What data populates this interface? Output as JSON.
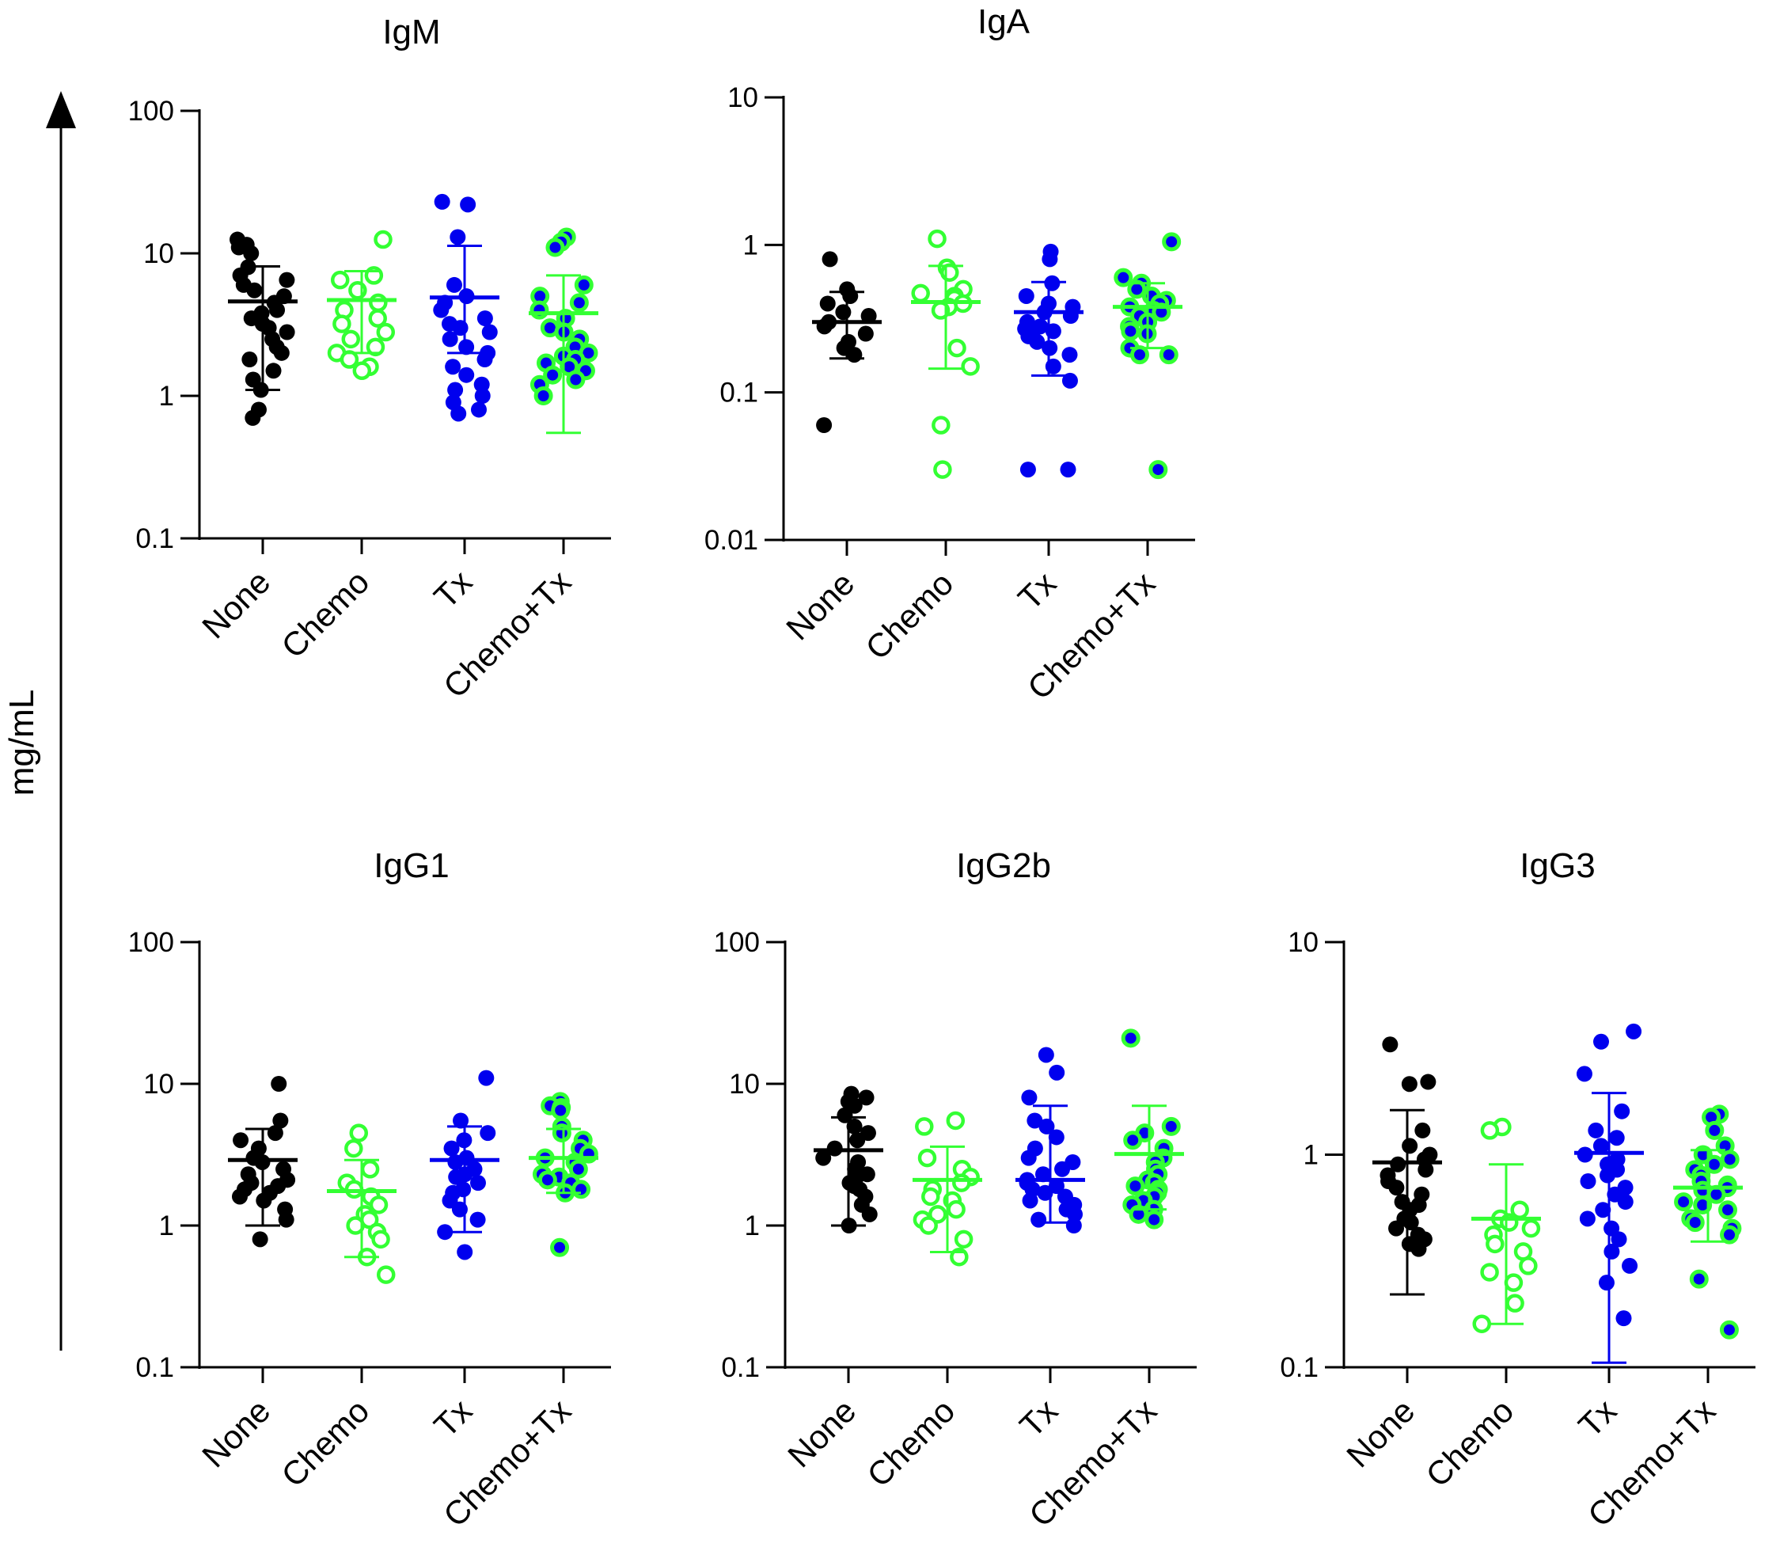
{
  "figure": {
    "ylabel": "mg/mL",
    "colors": {
      "none": "#000000",
      "chemo": "#33ff33",
      "tx": "#0000ee",
      "chemo_tx_fill": "#0000ee",
      "chemo_tx_ring": "#33ff33"
    }
  },
  "chart_data": [
    {
      "type": "scatter",
      "title": "IgM",
      "scale": "log10",
      "ylim": [
        0.1,
        100
      ],
      "yticks": [
        "0.1",
        "1",
        "10",
        "100"
      ],
      "categories": [
        "None",
        "Chemo",
        "Tx",
        "Chemo+Tx"
      ],
      "groups": [
        {
          "name": "None",
          "mean": 4.6,
          "err_low": 1.1,
          "err_high": 8.1,
          "values": [
            12.5,
            11.5,
            11,
            10,
            8,
            7,
            6.5,
            6,
            5.5,
            5,
            4.5,
            4,
            3.8,
            3.5,
            3.2,
            3,
            2.8,
            2.5,
            2.2,
            2,
            1.8,
            1.5,
            1.3,
            1.1,
            0.8,
            0.7
          ]
        },
        {
          "name": "Chemo",
          "mean": 4.7,
          "err_low": 2.0,
          "err_high": 7.5,
          "values": [
            12.5,
            7,
            6.5,
            5.5,
            4.5,
            4,
            3.5,
            3.2,
            2.8,
            2.5,
            2.2,
            2,
            1.8,
            1.6,
            1.5
          ]
        },
        {
          "name": "Tx",
          "mean": 4.9,
          "err_low": 2.0,
          "err_high": 11.3,
          "values": [
            23,
            22,
            13,
            6,
            5,
            4.5,
            4,
            3.5,
            3.2,
            3,
            2.8,
            2.5,
            2.2,
            2,
            1.8,
            1.6,
            1.4,
            1.2,
            1.1,
            1,
            0.9,
            0.8,
            0.75
          ]
        },
        {
          "name": "Chemo+Tx",
          "mean": 3.8,
          "err_low": 0.55,
          "err_high": 7.0,
          "values": [
            13,
            12,
            11,
            6,
            5,
            4.5,
            4,
            3.5,
            3,
            2.8,
            2.5,
            2.2,
            2,
            1.9,
            1.8,
            1.7,
            1.6,
            1.5,
            1.4,
            1.3,
            1.2,
            1
          ]
        }
      ]
    },
    {
      "type": "scatter",
      "title": "IgA",
      "scale": "log10",
      "ylim": [
        0.01,
        10
      ],
      "yticks": [
        "0.01",
        "0.1",
        "1",
        "10"
      ],
      "categories": [
        "None",
        "Chemo",
        "Tx",
        "Chemo+Tx"
      ],
      "groups": [
        {
          "name": "None",
          "mean": 0.3,
          "err_low": 0.17,
          "err_high": 0.48,
          "values": [
            0.8,
            0.5,
            0.45,
            0.4,
            0.35,
            0.33,
            0.3,
            0.28,
            0.25,
            0.22,
            0.2,
            0.18,
            0.06
          ]
        },
        {
          "name": "Chemo",
          "mean": 0.41,
          "err_low": 0.145,
          "err_high": 0.72,
          "values": [
            1.1,
            0.7,
            0.65,
            0.5,
            0.47,
            0.45,
            0.43,
            0.4,
            0.38,
            0.36,
            0.2,
            0.15,
            0.06,
            0.03
          ]
        },
        {
          "name": "Tx",
          "mean": 0.35,
          "err_low": 0.13,
          "err_high": 0.56,
          "values": [
            0.9,
            0.8,
            0.55,
            0.45,
            0.4,
            0.38,
            0.35,
            0.33,
            0.3,
            0.28,
            0.27,
            0.26,
            0.25,
            0.24,
            0.22,
            0.2,
            0.18,
            0.15,
            0.12,
            0.03,
            0.03
          ]
        },
        {
          "name": "Chemo+Tx",
          "mean": 0.38,
          "err_low": 0.2,
          "err_high": 0.55,
          "values": [
            1.05,
            0.6,
            0.55,
            0.5,
            0.45,
            0.42,
            0.4,
            0.38,
            0.36,
            0.35,
            0.33,
            0.3,
            0.28,
            0.26,
            0.25,
            0.2,
            0.18,
            0.18,
            0.03
          ]
        }
      ]
    },
    {
      "type": "scatter",
      "title": "IgG1",
      "scale": "log10",
      "ylim": [
        0.1,
        100
      ],
      "yticks": [
        "0.1",
        "1",
        "10",
        "100"
      ],
      "categories": [
        "None",
        "Chemo",
        "Tx",
        "Chemo+Tx"
      ],
      "groups": [
        {
          "name": "None",
          "mean": 2.9,
          "err_low": 1.0,
          "err_high": 4.8,
          "values": [
            10,
            5.5,
            4.5,
            4,
            3.5,
            3,
            2.8,
            2.5,
            2.3,
            2.1,
            2,
            1.9,
            1.8,
            1.7,
            1.6,
            1.5,
            1.3,
            1.1,
            0.8
          ]
        },
        {
          "name": "Chemo",
          "mean": 1.75,
          "err_low": 0.6,
          "err_high": 2.9,
          "values": [
            4.5,
            3.5,
            2.5,
            2,
            1.8,
            1.6,
            1.4,
            1.2,
            1.1,
            1,
            0.9,
            0.8,
            0.6,
            0.45
          ]
        },
        {
          "name": "Tx",
          "mean": 2.9,
          "err_low": 0.9,
          "err_high": 5.0,
          "values": [
            11,
            5.5,
            4.5,
            4,
            3.5,
            3,
            2.8,
            2.5,
            2.3,
            2.2,
            2,
            1.8,
            1.7,
            1.5,
            1.3,
            1.1,
            0.9,
            0.65
          ]
        },
        {
          "name": "Chemo+Tx",
          "mean": 3.0,
          "err_low": 1.7,
          "err_high": 4.8,
          "values": [
            7.5,
            7,
            6.8,
            6.5,
            5,
            4.5,
            4,
            3.5,
            3.2,
            3,
            2.8,
            2.5,
            2.3,
            2.2,
            2.1,
            2,
            1.8,
            1.7,
            0.7
          ]
        }
      ]
    },
    {
      "type": "scatter",
      "title": "IgG2b",
      "scale": "log10",
      "ylim": [
        0.1,
        100
      ],
      "yticks": [
        "0.1",
        "1",
        "10",
        "100"
      ],
      "categories": [
        "None",
        "Chemo",
        "Tx",
        "Chemo+Tx"
      ],
      "groups": [
        {
          "name": "None",
          "mean": 3.4,
          "err_low": 1.0,
          "err_high": 5.8,
          "values": [
            8.5,
            8,
            7.5,
            7,
            6,
            5,
            4.5,
            4,
            3.5,
            3,
            2.8,
            2.5,
            2.3,
            2.2,
            2,
            1.9,
            1.8,
            1.6,
            1.4,
            1.2,
            1
          ]
        },
        {
          "name": "Chemo",
          "mean": 2.1,
          "err_low": 0.65,
          "err_high": 3.6,
          "values": [
            5.5,
            5,
            3,
            2.5,
            2.2,
            2,
            1.8,
            1.6,
            1.5,
            1.3,
            1.2,
            1.1,
            1,
            0.8,
            0.6
          ]
        },
        {
          "name": "Tx",
          "mean": 2.1,
          "err_low": 1.05,
          "err_high": 7.0,
          "values": [
            16,
            12,
            8,
            5.5,
            5,
            4.2,
            3.5,
            3,
            2.8,
            2.5,
            2.3,
            2.1,
            2,
            1.9,
            1.8,
            1.7,
            1.6,
            1.5,
            1.4,
            1.3,
            1.2,
            1.1,
            1
          ]
        },
        {
          "name": "Chemo+Tx",
          "mean": 3.2,
          "err_low": 1.3,
          "err_high": 7.0,
          "values": [
            21,
            5,
            4.5,
            4,
            3.5,
            3,
            2.8,
            2.5,
            2.3,
            2.1,
            2,
            1.9,
            1.8,
            1.7,
            1.6,
            1.5,
            1.4,
            1.3,
            1.2,
            1.1
          ]
        }
      ]
    },
    {
      "type": "scatter",
      "title": "IgG3",
      "scale": "log10",
      "ylim": [
        0.1,
        10
      ],
      "yticks": [
        "0.1",
        "1",
        "10"
      ],
      "categories": [
        "None",
        "Chemo",
        "Tx",
        "Chemo+Tx"
      ],
      "groups": [
        {
          "name": "None",
          "mean": 0.92,
          "err_low": 0.22,
          "err_high": 1.62,
          "values": [
            3.3,
            2.2,
            2.15,
            1.3,
            1.1,
            1,
            0.95,
            0.9,
            0.85,
            0.8,
            0.75,
            0.7,
            0.65,
            0.6,
            0.58,
            0.55,
            0.5,
            0.48,
            0.45,
            0.42,
            0.4,
            0.38,
            0.36
          ]
        },
        {
          "name": "Chemo",
          "mean": 0.5,
          "err_low": 0.16,
          "err_high": 0.9,
          "values": [
            1.35,
            1.3,
            0.55,
            0.5,
            0.48,
            0.45,
            0.42,
            0.38,
            0.35,
            0.3,
            0.28,
            0.25,
            0.2,
            0.16
          ]
        },
        {
          "name": "Tx",
          "mean": 1.02,
          "err_low": 0.105,
          "err_high": 1.95,
          "values": [
            3.8,
            3.4,
            2.4,
            1.6,
            1.3,
            1.2,
            1.1,
            1,
            0.95,
            0.9,
            0.85,
            0.8,
            0.75,
            0.7,
            0.65,
            0.6,
            0.55,
            0.5,
            0.45,
            0.4,
            0.35,
            0.3,
            0.25,
            0.17
          ]
        },
        {
          "name": "Chemo+Tx",
          "mean": 0.7,
          "err_low": 0.39,
          "err_high": 1.05,
          "values": [
            1.55,
            1.5,
            1.3,
            1.1,
            1,
            0.95,
            0.9,
            0.85,
            0.8,
            0.75,
            0.72,
            0.7,
            0.68,
            0.65,
            0.6,
            0.58,
            0.55,
            0.5,
            0.48,
            0.45,
            0.42,
            0.26,
            0.15
          ]
        }
      ]
    }
  ]
}
